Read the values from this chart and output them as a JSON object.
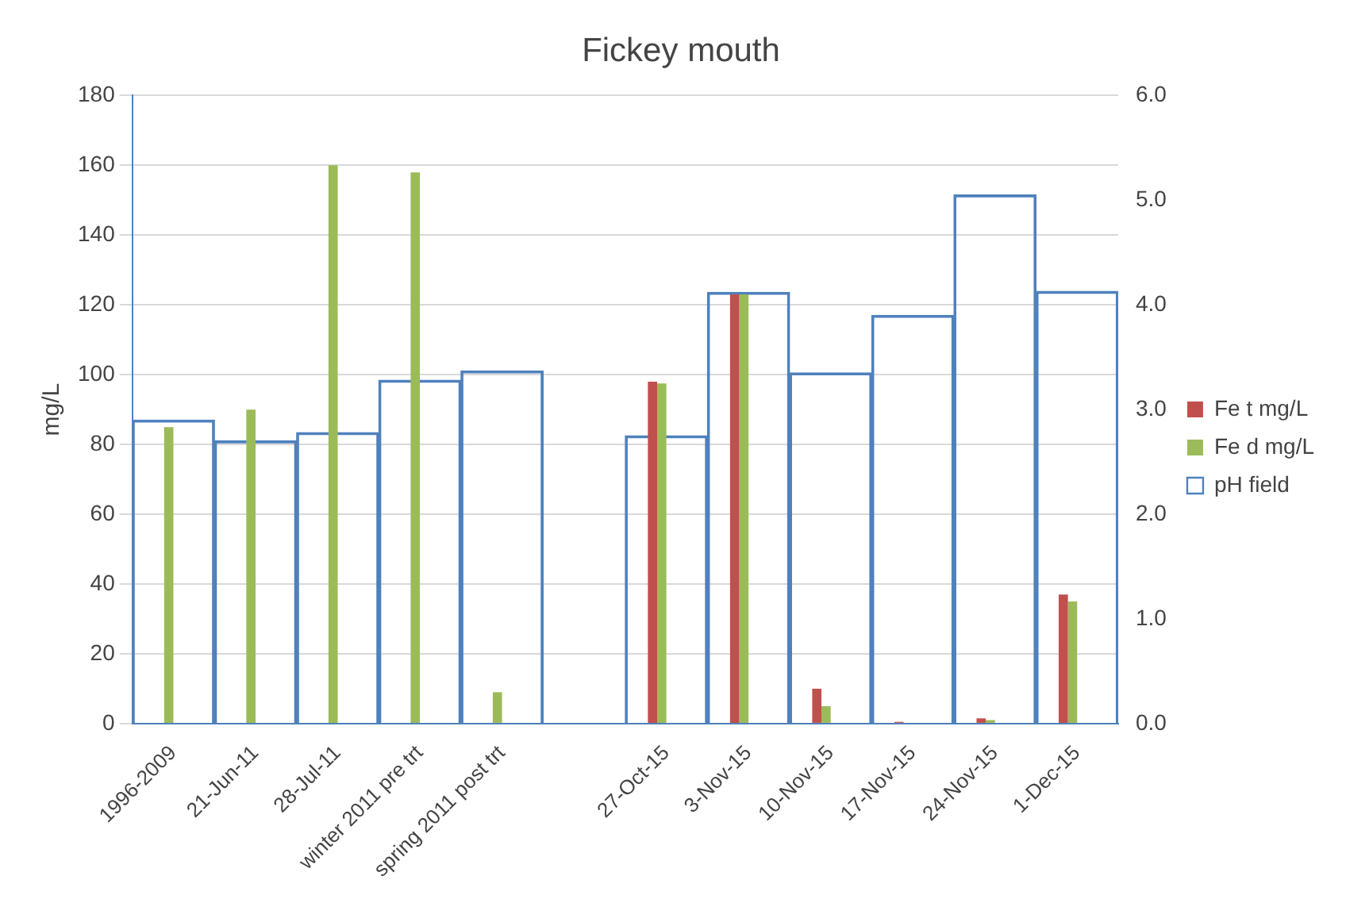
{
  "chart_data": {
    "type": "bar",
    "title": "Fickey mouth",
    "ylabel": "mg/L",
    "categories": [
      "1996-2009",
      "21-Jun-11",
      "28-Jul-11",
      "winter 2011 pre trt",
      "spring 2011 post trt",
      null,
      "27-Oct-15",
      "3-Nov-15",
      "10-Nov-15",
      "17-Nov-15",
      "24-Nov-15",
      "1-Dec-15"
    ],
    "series": [
      {
        "name": "Fe t mg/L",
        "color": "#c0504d",
        "values": [
          null,
          null,
          null,
          null,
          null,
          null,
          98,
          123,
          10,
          0.5,
          1.5,
          37
        ]
      },
      {
        "name": "Fe d mg/L",
        "color": "#9bbb59",
        "values": [
          85,
          90,
          160,
          158,
          9,
          null,
          97.5,
          123,
          5,
          null,
          1,
          35
        ]
      },
      {
        "name": "pH field",
        "color": "#4f81bd",
        "axis": "y2",
        "values": [
          2.9,
          2.7,
          2.78,
          3.28,
          3.37,
          null,
          2.75,
          4.12,
          3.35,
          3.9,
          5.05,
          4.13
        ]
      }
    ],
    "ylim": [
      0,
      180
    ],
    "yticks": [
      0,
      20,
      40,
      60,
      80,
      100,
      120,
      140,
      160,
      180
    ],
    "y2lim": [
      0,
      6
    ],
    "y2ticks": [
      {
        "value": 0,
        "label": "0.0"
      },
      {
        "value": 1,
        "label": "1.0"
      },
      {
        "value": 2,
        "label": "2.0"
      },
      {
        "value": 3,
        "label": "3.0"
      },
      {
        "value": 4,
        "label": "4.0"
      },
      {
        "value": 5,
        "label": "5.0"
      },
      {
        "value": 6,
        "label": "6.0"
      }
    ],
    "grid": "y",
    "legend": "right"
  }
}
